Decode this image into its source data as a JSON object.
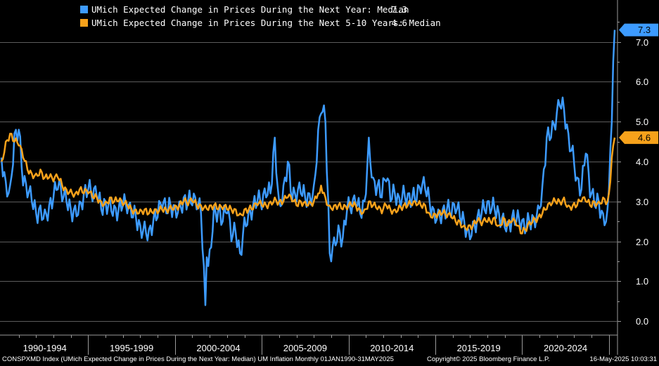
{
  "chart_data": {
    "type": "line",
    "title": "",
    "xlabel": "",
    "ylabel": "",
    "xlim": [
      "1990-01",
      "2025-05"
    ],
    "ylim": [
      -0.35,
      8.05
    ],
    "yticks": [
      "0.0",
      "1.0",
      "2.0",
      "3.0",
      "4.0",
      "5.0",
      "6.0",
      "7.0"
    ],
    "x_categories": [
      "1990-1994",
      "1995-1999",
      "2000-2004",
      "2005-2009",
      "2010-2014",
      "2015-2019",
      "2020-2024"
    ],
    "grid": true,
    "legend_position": "top-left",
    "series": [
      {
        "name": "UMich Expected Change in Prices During the Next Year: Median",
        "last_value": "7.3",
        "color": "#3d9bff",
        "points": [
          [
            "1990-01",
            4.1
          ],
          [
            "1990-04",
            3.5
          ],
          [
            "1990-07",
            3.4
          ],
          [
            "1990-10",
            4.7
          ],
          [
            "1991-01",
            4.8
          ],
          [
            "1991-04",
            3.4
          ],
          [
            "1991-07",
            3.1
          ],
          [
            "1991-10",
            3.0
          ],
          [
            "1992-01",
            2.7
          ],
          [
            "1992-04",
            2.9
          ],
          [
            "1992-07",
            2.8
          ],
          [
            "1992-10",
            2.9
          ],
          [
            "1993-01",
            3.1
          ],
          [
            "1993-04",
            3.3
          ],
          [
            "1993-07",
            3.0
          ],
          [
            "1993-10",
            3.0
          ],
          [
            "1994-01",
            2.8
          ],
          [
            "1994-04",
            2.9
          ],
          [
            "1994-07",
            3.0
          ],
          [
            "1994-10",
            3.2
          ],
          [
            "1995-01",
            3.3
          ],
          [
            "1995-04",
            3.0
          ],
          [
            "1995-07",
            3.1
          ],
          [
            "1995-10",
            2.8
          ],
          [
            "1996-01",
            3.0
          ],
          [
            "1996-04",
            3.1
          ],
          [
            "1996-07",
            2.9
          ],
          [
            "1996-10",
            2.8
          ],
          [
            "1997-01",
            2.9
          ],
          [
            "1997-04",
            2.7
          ],
          [
            "1997-07",
            2.6
          ],
          [
            "1997-10",
            2.6
          ],
          [
            "1998-01",
            2.4
          ],
          [
            "1998-04",
            2.5
          ],
          [
            "1998-07",
            2.3
          ],
          [
            "1998-10",
            2.5
          ],
          [
            "1999-01",
            2.6
          ],
          [
            "1999-04",
            2.8
          ],
          [
            "1999-07",
            2.7
          ],
          [
            "1999-10",
            2.9
          ],
          [
            "2000-01",
            2.9
          ],
          [
            "2000-04",
            3.0
          ],
          [
            "2000-07",
            3.1
          ],
          [
            "2000-10",
            3.0
          ],
          [
            "2001-01",
            2.9
          ],
          [
            "2001-04",
            2.8
          ],
          [
            "2001-07",
            2.7
          ],
          [
            "2001-10",
            0.4
          ],
          [
            "2001-11",
            1.6
          ],
          [
            "2002-01",
            1.8
          ],
          [
            "2002-04",
            2.9
          ],
          [
            "2002-07",
            2.8
          ],
          [
            "2002-10",
            2.5
          ],
          [
            "2003-01",
            2.7
          ],
          [
            "2003-04",
            2.0
          ],
          [
            "2003-07",
            2.2
          ],
          [
            "2003-10",
            1.7
          ],
          [
            "2004-01",
            2.6
          ],
          [
            "2004-04",
            2.8
          ],
          [
            "2004-07",
            2.9
          ],
          [
            "2004-10",
            3.0
          ],
          [
            "2005-01",
            2.8
          ],
          [
            "2005-04",
            3.1
          ],
          [
            "2005-07",
            3.2
          ],
          [
            "2005-10",
            4.6
          ],
          [
            "2006-01",
            3.0
          ],
          [
            "2006-04",
            3.4
          ],
          [
            "2006-07",
            4.0
          ],
          [
            "2006-10",
            3.0
          ],
          [
            "2007-01",
            3.0
          ],
          [
            "2007-04",
            3.2
          ],
          [
            "2007-07",
            3.1
          ],
          [
            "2007-10",
            3.2
          ],
          [
            "2008-01",
            3.4
          ],
          [
            "2008-04",
            4.8
          ],
          [
            "2008-06",
            5.2
          ],
          [
            "2008-09",
            5.0
          ],
          [
            "2008-12",
            1.7
          ],
          [
            "2009-03",
            2.1
          ],
          [
            "2009-06",
            2.4
          ],
          [
            "2009-09",
            2.1
          ],
          [
            "2009-12",
            2.8
          ],
          [
            "2010-03",
            2.7
          ],
          [
            "2010-06",
            2.9
          ],
          [
            "2010-09",
            2.7
          ],
          [
            "2010-12",
            3.0
          ],
          [
            "2011-03",
            4.6
          ],
          [
            "2011-06",
            3.6
          ],
          [
            "2011-09",
            3.4
          ],
          [
            "2011-12",
            3.1
          ],
          [
            "2012-03",
            3.5
          ],
          [
            "2012-06",
            3.0
          ],
          [
            "2012-09",
            3.2
          ],
          [
            "2012-12",
            3.1
          ],
          [
            "2013-03",
            3.4
          ],
          [
            "2013-06",
            3.2
          ],
          [
            "2013-09",
            3.1
          ],
          [
            "2013-12",
            3.0
          ],
          [
            "2014-03",
            3.2
          ],
          [
            "2014-06",
            3.3
          ],
          [
            "2014-09",
            3.0
          ],
          [
            "2014-12",
            2.8
          ],
          [
            "2015-03",
            2.8
          ],
          [
            "2015-06",
            2.8
          ],
          [
            "2015-09",
            2.8
          ],
          [
            "2015-12",
            2.6
          ],
          [
            "2016-03",
            2.7
          ],
          [
            "2016-06",
            2.6
          ],
          [
            "2016-09",
            2.5
          ],
          [
            "2016-12",
            2.3
          ],
          [
            "2017-03",
            2.5
          ],
          [
            "2017-06",
            2.6
          ],
          [
            "2017-09",
            2.7
          ],
          [
            "2017-12",
            2.7
          ],
          [
            "2018-03",
            2.7
          ],
          [
            "2018-06",
            2.8
          ],
          [
            "2018-09",
            2.7
          ],
          [
            "2018-12",
            2.7
          ],
          [
            "2019-03",
            2.5
          ],
          [
            "2019-06",
            2.6
          ],
          [
            "2019-09",
            2.5
          ],
          [
            "2019-12",
            2.3
          ],
          [
            "2020-03",
            2.2
          ],
          [
            "2020-06",
            2.5
          ],
          [
            "2020-09",
            2.6
          ],
          [
            "2020-12",
            2.9
          ],
          [
            "2021-03",
            3.4
          ],
          [
            "2021-06",
            4.6
          ],
          [
            "2021-09",
            4.6
          ],
          [
            "2021-12",
            4.8
          ],
          [
            "2022-03",
            5.4
          ],
          [
            "2022-06",
            5.3
          ],
          [
            "2022-09",
            4.7
          ],
          [
            "2022-12",
            4.4
          ],
          [
            "2023-03",
            3.6
          ],
          [
            "2023-06",
            3.3
          ],
          [
            "2023-09",
            4.2
          ],
          [
            "2023-12",
            3.1
          ],
          [
            "2024-03",
            2.9
          ],
          [
            "2024-06",
            3.0
          ],
          [
            "2024-09",
            2.7
          ],
          [
            "2024-12",
            2.8
          ],
          [
            "2025-01",
            3.3
          ],
          [
            "2025-02",
            4.3
          ],
          [
            "2025-03",
            5.0
          ],
          [
            "2025-04",
            6.5
          ],
          [
            "2025-05",
            7.3
          ]
        ]
      },
      {
        "name": "UMich Expected Change in Prices During the Next 5-10 Years: Median",
        "last_value": "4.6",
        "color": "#f7a21b",
        "points": [
          [
            "1990-01",
            4.0
          ],
          [
            "1990-04",
            4.5
          ],
          [
            "1990-07",
            4.7
          ],
          [
            "1990-10",
            4.5
          ],
          [
            "1991-01",
            4.4
          ],
          [
            "1991-04",
            4.1
          ],
          [
            "1991-07",
            3.8
          ],
          [
            "1991-10",
            3.7
          ],
          [
            "1992-01",
            3.7
          ],
          [
            "1992-04",
            3.8
          ],
          [
            "1992-07",
            3.6
          ],
          [
            "1992-10",
            3.6
          ],
          [
            "1993-01",
            3.5
          ],
          [
            "1993-04",
            3.6
          ],
          [
            "1993-07",
            3.4
          ],
          [
            "1993-10",
            3.3
          ],
          [
            "1994-01",
            3.3
          ],
          [
            "1994-04",
            3.2
          ],
          [
            "1994-07",
            3.3
          ],
          [
            "1994-10",
            3.2
          ],
          [
            "1995-01",
            3.2
          ],
          [
            "1995-04",
            3.1
          ],
          [
            "1995-07",
            3.1
          ],
          [
            "1995-10",
            3.0
          ],
          [
            "1996-01",
            3.0
          ],
          [
            "1996-04",
            3.1
          ],
          [
            "1996-07",
            3.0
          ],
          [
            "1996-10",
            3.0
          ],
          [
            "1997-01",
            2.9
          ],
          [
            "1997-04",
            2.9
          ],
          [
            "1997-07",
            2.8
          ],
          [
            "1997-10",
            2.8
          ],
          [
            "1998-01",
            2.8
          ],
          [
            "1998-04",
            2.8
          ],
          [
            "1998-07",
            2.7
          ],
          [
            "1998-10",
            2.7
          ],
          [
            "1999-01",
            2.7
          ],
          [
            "1999-04",
            2.8
          ],
          [
            "1999-07",
            2.8
          ],
          [
            "1999-10",
            2.9
          ],
          [
            "2000-01",
            2.9
          ],
          [
            "2000-04",
            2.9
          ],
          [
            "2000-07",
            3.0
          ],
          [
            "2000-10",
            2.9
          ],
          [
            "2001-01",
            3.0
          ],
          [
            "2001-04",
            2.9
          ],
          [
            "2001-07",
            2.9
          ],
          [
            "2001-10",
            2.9
          ],
          [
            "2002-01",
            2.9
          ],
          [
            "2002-04",
            2.9
          ],
          [
            "2002-07",
            2.8
          ],
          [
            "2002-10",
            2.8
          ],
          [
            "2003-01",
            2.8
          ],
          [
            "2003-04",
            2.8
          ],
          [
            "2003-07",
            2.8
          ],
          [
            "2003-10",
            2.7
          ],
          [
            "2004-01",
            2.8
          ],
          [
            "2004-04",
            2.8
          ],
          [
            "2004-07",
            2.8
          ],
          [
            "2004-10",
            2.9
          ],
          [
            "2005-01",
            2.9
          ],
          [
            "2005-04",
            2.9
          ],
          [
            "2005-07",
            3.0
          ],
          [
            "2005-10",
            3.1
          ],
          [
            "2006-01",
            3.0
          ],
          [
            "2006-04",
            3.0
          ],
          [
            "2006-07",
            3.1
          ],
          [
            "2006-10",
            3.0
          ],
          [
            "2007-01",
            2.9
          ],
          [
            "2007-04",
            3.0
          ],
          [
            "2007-07",
            3.0
          ],
          [
            "2007-10",
            3.0
          ],
          [
            "2008-01",
            3.0
          ],
          [
            "2008-04",
            3.2
          ],
          [
            "2008-06",
            3.4
          ],
          [
            "2008-09",
            3.1
          ],
          [
            "2008-12",
            2.9
          ],
          [
            "2009-03",
            2.9
          ],
          [
            "2009-06",
            2.9
          ],
          [
            "2009-09",
            2.8
          ],
          [
            "2009-12",
            2.8
          ],
          [
            "2010-03",
            2.9
          ],
          [
            "2010-06",
            2.9
          ],
          [
            "2010-09",
            2.8
          ],
          [
            "2010-12",
            2.8
          ],
          [
            "2011-03",
            3.0
          ],
          [
            "2011-06",
            2.9
          ],
          [
            "2011-09",
            2.8
          ],
          [
            "2011-12",
            2.7
          ],
          [
            "2012-03",
            2.9
          ],
          [
            "2012-06",
            2.8
          ],
          [
            "2012-09",
            2.8
          ],
          [
            "2012-12",
            2.9
          ],
          [
            "2013-03",
            2.9
          ],
          [
            "2013-06",
            2.9
          ],
          [
            "2013-09",
            2.9
          ],
          [
            "2013-12",
            2.9
          ],
          [
            "2014-03",
            2.9
          ],
          [
            "2014-06",
            2.9
          ],
          [
            "2014-09",
            2.7
          ],
          [
            "2014-12",
            2.7
          ],
          [
            "2015-03",
            2.7
          ],
          [
            "2015-06",
            2.7
          ],
          [
            "2015-09",
            2.6
          ],
          [
            "2015-12",
            2.6
          ],
          [
            "2016-03",
            2.5
          ],
          [
            "2016-06",
            2.5
          ],
          [
            "2016-09",
            2.4
          ],
          [
            "2016-12",
            2.4
          ],
          [
            "2017-03",
            2.4
          ],
          [
            "2017-06",
            2.5
          ],
          [
            "2017-09",
            2.4
          ],
          [
            "2017-12",
            2.5
          ],
          [
            "2018-03",
            2.5
          ],
          [
            "2018-06",
            2.6
          ],
          [
            "2018-09",
            2.4
          ],
          [
            "2018-12",
            2.6
          ],
          [
            "2019-03",
            2.4
          ],
          [
            "2019-06",
            2.5
          ],
          [
            "2019-09",
            2.4
          ],
          [
            "2019-12",
            2.2
          ],
          [
            "2020-03",
            2.3
          ],
          [
            "2020-06",
            2.5
          ],
          [
            "2020-09",
            2.6
          ],
          [
            "2020-12",
            2.6
          ],
          [
            "2021-03",
            2.7
          ],
          [
            "2021-06",
            2.8
          ],
          [
            "2021-09",
            2.9
          ],
          [
            "2021-12",
            3.0
          ],
          [
            "2022-03",
            3.0
          ],
          [
            "2022-06",
            3.1
          ],
          [
            "2022-09",
            2.9
          ],
          [
            "2022-12",
            2.9
          ],
          [
            "2023-03",
            2.9
          ],
          [
            "2023-06",
            3.0
          ],
          [
            "2023-09",
            3.0
          ],
          [
            "2023-12",
            2.9
          ],
          [
            "2024-03",
            3.0
          ],
          [
            "2024-06",
            3.0
          ],
          [
            "2024-09",
            3.1
          ],
          [
            "2024-12",
            3.0
          ],
          [
            "2025-01",
            3.2
          ],
          [
            "2025-02",
            3.5
          ],
          [
            "2025-03",
            4.1
          ],
          [
            "2025-04",
            4.4
          ],
          [
            "2025-05",
            4.6
          ]
        ]
      }
    ]
  },
  "footer": {
    "left": "CONSPXMD Index (UMich Expected Change in Prices During the Next Year: Median) UM Inflation  Monthly 01JAN1990-31MAY2025",
    "center": "Copyright© 2025 Bloomberg Finance L.P.",
    "right": "16-May-2025 10:03:31"
  }
}
